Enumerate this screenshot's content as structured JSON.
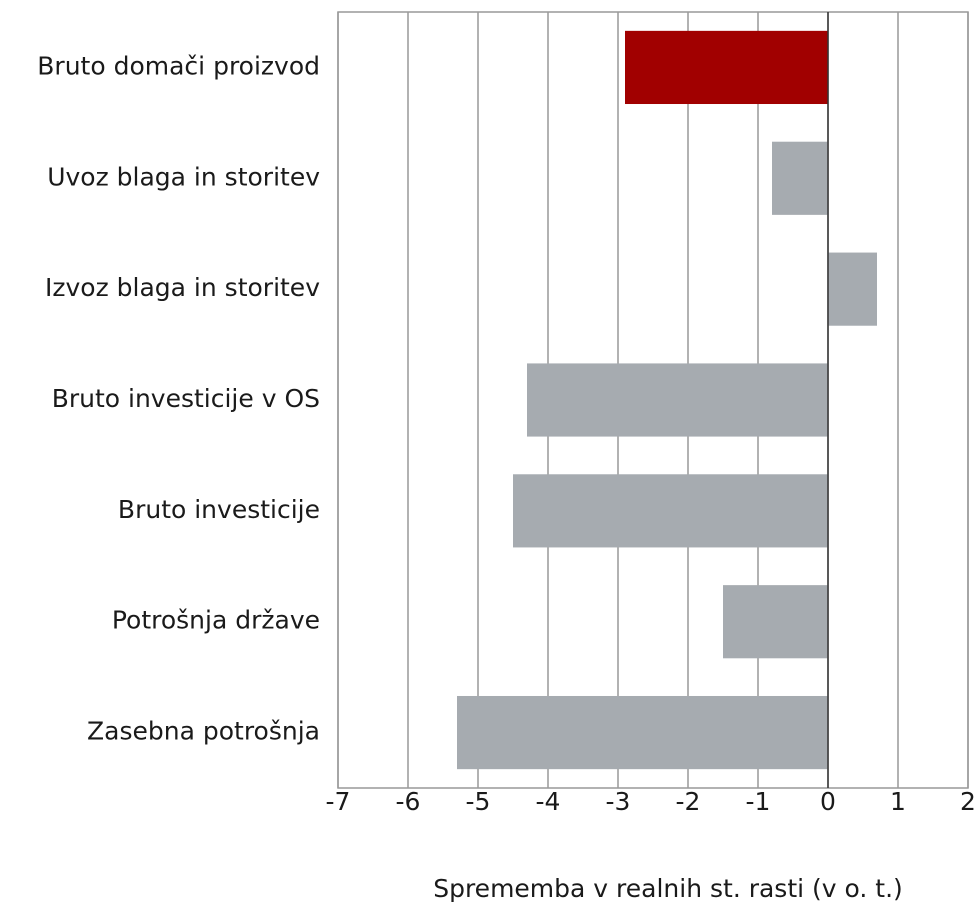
{
  "chart_data": {
    "type": "hbar",
    "categories": [
      "Bruto domači proizvod",
      "Uvoz blaga in storitev",
      "Izvoz blaga in storitev",
      "Bruto investicije v OS",
      "Bruto investicije",
      "Potrošnja države",
      "Zasebna potrošnja"
    ],
    "values": [
      -2.9,
      -0.8,
      0.7,
      -4.3,
      -4.5,
      -1.5,
      -5.3
    ],
    "colors": [
      "#a10000",
      "#a6abb0",
      "#a6abb0",
      "#a6abb0",
      "#a6abb0",
      "#a6abb0",
      "#a6abb0"
    ],
    "xlabel": "Sprememba v realnih st. rasti (v o. t.)",
    "xlim": [
      -7,
      2
    ],
    "xticks": [
      -7,
      -6,
      -5,
      -4,
      -3,
      -2,
      -1,
      0,
      1,
      2
    ],
    "grid": true
  }
}
